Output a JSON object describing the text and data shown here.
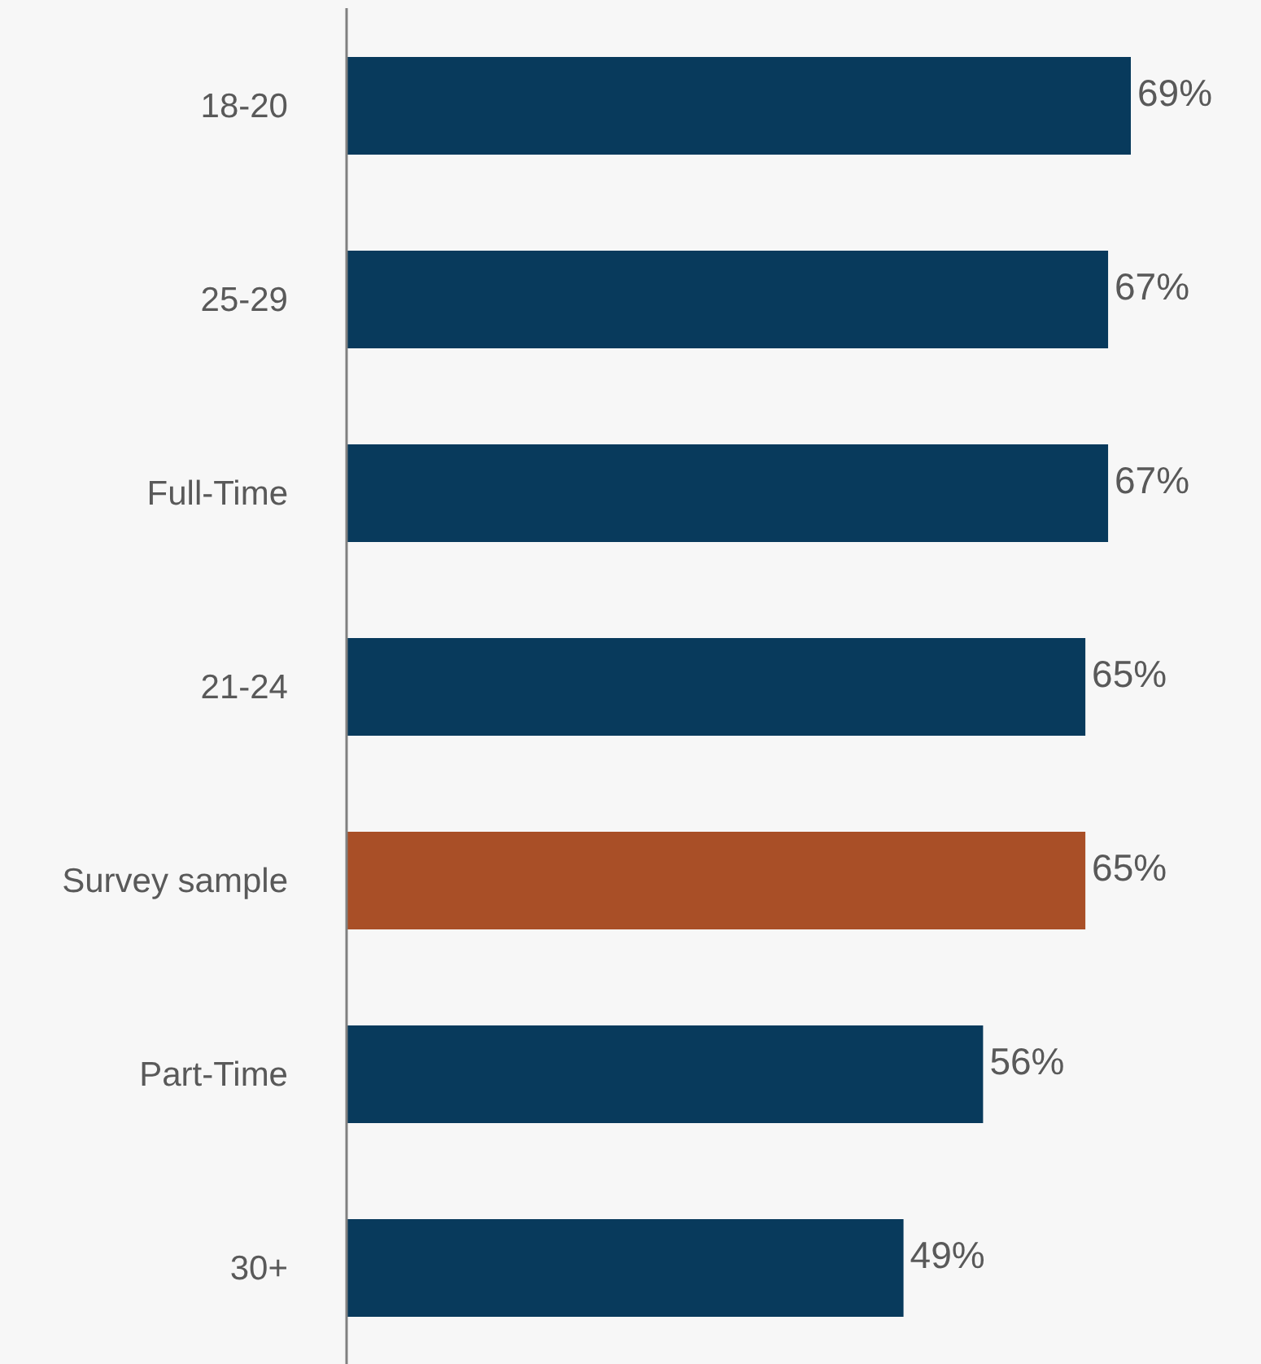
{
  "chart_data": {
    "type": "bar",
    "orientation": "horizontal",
    "categories": [
      "18-20",
      "25-29",
      "Full-Time",
      "21-24",
      "Survey sample",
      "Part-Time",
      "30+"
    ],
    "values": [
      69,
      67,
      67,
      65,
      65,
      56,
      49
    ],
    "colors": [
      "#083a5c",
      "#083a5c",
      "#083a5c",
      "#083a5c",
      "#a94f27",
      "#083a5c",
      "#083a5c"
    ],
    "value_labels": [
      "69%",
      "67%",
      "67%",
      "65%",
      "65%",
      "56%",
      "49%"
    ]
  }
}
